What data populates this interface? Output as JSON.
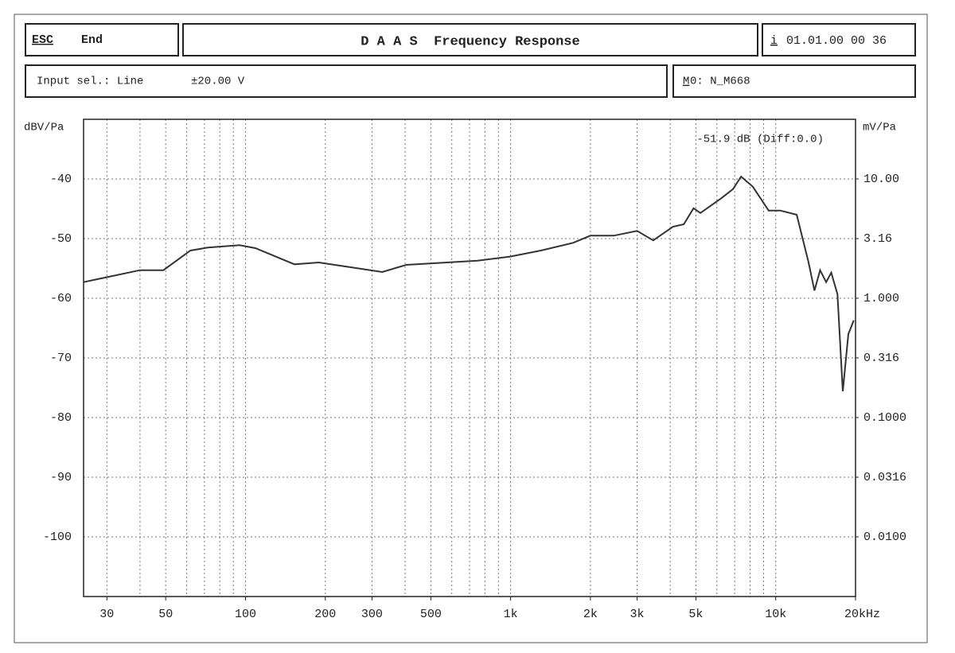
{
  "header": {
    "esc_key": "ESC",
    "esc_action": "End",
    "title": "D A A S  Frequency Response",
    "info_key": "i",
    "datetime": "01.01.00 00 36",
    "input_sel": "Input sel.: Line",
    "range": "±20.00 V",
    "memory_key": "M",
    "memory": "0: N_M668"
  },
  "chart_data": {
    "type": "line",
    "annotation": "-51.9 dB (Diff:0.0)",
    "ylabel": "dBV/Pa",
    "y2label": "mV/Pa",
    "x": [
      24.5,
      40,
      49,
      62,
      72,
      95,
      109,
      153,
      189,
      267,
      328,
      404,
      750,
      1000,
      1300,
      1720,
      2000,
      2450,
      3000,
      3450,
      4100,
      4500,
      4900,
      5200,
      6200,
      6900,
      7400,
      8200,
      9400,
      10400,
      12000,
      13300,
      14000,
      14700,
      15500,
      16200,
      17100,
      17900,
      18800,
      19700
    ],
    "series": [
      {
        "color": "#333333",
        "values": [
          -57.3,
          -55.3,
          -55.3,
          -52,
          -51.5,
          -51.1,
          -51.6,
          -54.3,
          -54,
          -55,
          -55.6,
          -54.4,
          -53.7,
          -53,
          -52,
          -50.7,
          -49.5,
          -49.5,
          -48.7,
          -50.3,
          -48,
          -47.6,
          -44.9,
          -45.7,
          -43.3,
          -41.7,
          -39.6,
          -41.3,
          -45.3,
          -45.3,
          -46,
          -54,
          -58.7,
          -55.3,
          -57.3,
          -55.7,
          -59.3,
          -75.6,
          -66,
          -63.7
        ]
      }
    ],
    "xlim": [
      24.5,
      20000
    ],
    "xscale": "log",
    "xticks": [
      30,
      50,
      100,
      200,
      300,
      500,
      {
        "value": 1000,
        "label": "1k"
      },
      {
        "value": 2000,
        "label": "2k"
      },
      {
        "value": 3000,
        "label": "3k"
      },
      {
        "value": 5000,
        "label": "5k"
      },
      {
        "value": 10000,
        "label": "10k"
      },
      {
        "value": 20000,
        "label": "20kHz"
      }
    ],
    "xgrid": [
      30,
      40,
      50,
      60,
      70,
      80,
      90,
      100,
      200,
      300,
      400,
      500,
      600,
      700,
      800,
      900,
      1000,
      2000,
      3000,
      4000,
      5000,
      6000,
      7000,
      8000,
      9000,
      10000
    ],
    "ylim": [
      -110,
      -30
    ],
    "yticks": [
      -40,
      -50,
      -60,
      -70,
      -80,
      -90,
      -100
    ],
    "y2lim": [
      0.00316,
      31.6
    ],
    "y2scale": "log",
    "y2ticks": [
      {
        "value": 10,
        "label": "10.00"
      },
      3.16,
      {
        "value": 1,
        "label": "1.000"
      },
      0.316,
      {
        "value": 0.1,
        "label": "0.1000"
      },
      0.0316,
      {
        "value": 0.01,
        "label": "0.0100"
      }
    ],
    "grid": true
  }
}
